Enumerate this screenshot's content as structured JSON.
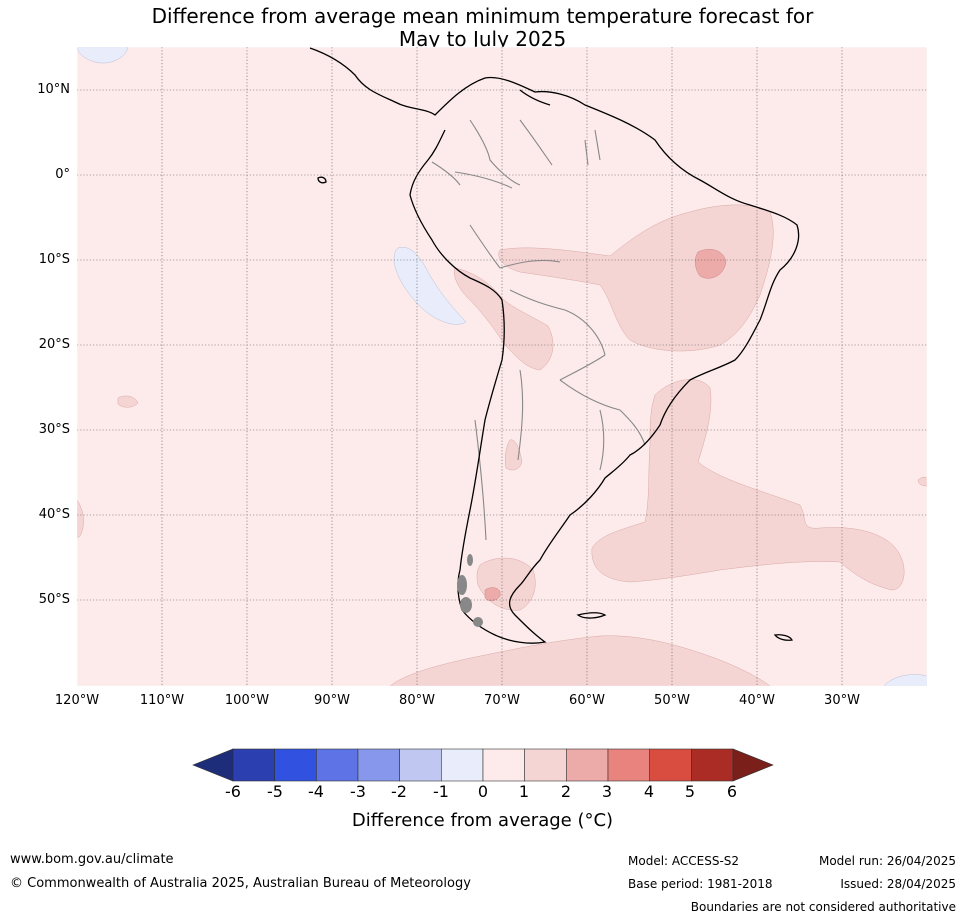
{
  "title_line1": "Difference from average mean minimum temperature forecast for",
  "title_line2": "May to July 2025",
  "lat_labels": [
    "10°N",
    "0°",
    "10°S",
    "20°S",
    "30°S",
    "40°S",
    "50°S"
  ],
  "lon_labels": [
    "120°W",
    "110°W",
    "100°W",
    "90°W",
    "80°W",
    "70°W",
    "60°W",
    "50°W",
    "40°W",
    "30°W"
  ],
  "map_extent": {
    "lon_min": -120,
    "lon_max": -20,
    "lat_min": -60,
    "lat_max": 15
  },
  "colorbar": {
    "ticks": [
      "-6",
      "-5",
      "-4",
      "-3",
      "-2",
      "-1",
      "0",
      "1",
      "2",
      "3",
      "4",
      "5",
      "6"
    ],
    "colors": [
      "#2b3fb0",
      "#3152e0",
      "#5d73e6",
      "#8798ec",
      "#c0c8f2",
      "#e9ecfb",
      "#fcebea",
      "#f5d5d4",
      "#ecaba8",
      "#e8837e",
      "#d94c40",
      "#ab2c24"
    ],
    "under_color": "#1e2d7a",
    "over_color": "#7a1f1a",
    "label": "Difference from average (°C)"
  },
  "field_colors": {
    "background": "#fcebea",
    "warm": "#f5d5d4",
    "warmer": "#ecaba8",
    "cool": "#e9ecfb"
  },
  "footer": {
    "website": "www.bom.gov.au/climate",
    "copyright": "© Commonwealth of Australia 2025, Australian Bureau of Meteorology",
    "model": "Model: ACCESS-S2",
    "base_period": "Base period: 1981-2018",
    "model_run": "Model run: 26/04/2025",
    "issued": "Issued: 28/04/2025",
    "boundaries_note": "Boundaries are not considered authoritative"
  }
}
